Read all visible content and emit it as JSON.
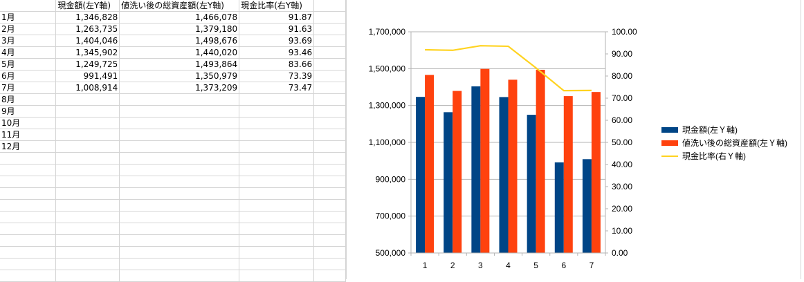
{
  "sheet": {
    "headers": [
      "",
      "現金額(左Y軸)",
      "値洗い後の総資産額(左Y軸)",
      "現金比率(右Y軸)"
    ],
    "rows": [
      [
        "1月",
        "1,346,828",
        "1,466,078",
        "91.87"
      ],
      [
        "2月",
        "1,263,735",
        "1,379,180",
        "91.63"
      ],
      [
        "3月",
        "1,404,046",
        "1,498,676",
        "93.69"
      ],
      [
        "4月",
        "1,345,902",
        "1,440,020",
        "93.46"
      ],
      [
        "5月",
        "1,249,725",
        "1,493,864",
        "83.66"
      ],
      [
        "6月",
        "991,491",
        "1,350,979",
        "73.39"
      ],
      [
        "7月",
        "1,008,914",
        "1,373,209",
        "73.47"
      ],
      [
        "8月",
        "",
        "",
        ""
      ],
      [
        "9月",
        "",
        "",
        ""
      ],
      [
        "10月",
        "",
        "",
        ""
      ],
      [
        "11月",
        "",
        "",
        ""
      ],
      [
        "12月",
        "",
        "",
        ""
      ]
    ]
  },
  "chart_data": {
    "type": "bar",
    "categories": [
      "1",
      "2",
      "3",
      "4",
      "5",
      "6",
      "7"
    ],
    "series": [
      {
        "name": "現金額(左Ｙ軸)",
        "type": "bar",
        "axis": "left",
        "color": "#004586",
        "values": [
          1346828,
          1263735,
          1404046,
          1345902,
          1249725,
          991491,
          1008914
        ]
      },
      {
        "name": "値洗い後の総資産額(左Ｙ軸)",
        "type": "bar",
        "axis": "left",
        "color": "#ff420e",
        "values": [
          1466078,
          1379180,
          1498676,
          1440020,
          1493864,
          1350979,
          1373209
        ]
      },
      {
        "name": "現金比率(右Ｙ軸)",
        "type": "line",
        "axis": "right",
        "color": "#ffd320",
        "values": [
          91.87,
          91.63,
          93.69,
          93.46,
          83.66,
          73.39,
          73.47
        ]
      }
    ],
    "ylim_left": [
      500000,
      1700000
    ],
    "ylim_right": [
      0,
      100
    ],
    "yticks_left": [
      "500,000",
      "700,000",
      "900,000",
      "1,100,000",
      "1,300,000",
      "1,500,000",
      "1,700,000"
    ],
    "yticks_right": [
      "0.00",
      "10.00",
      "20.00",
      "30.00",
      "40.00",
      "50.00",
      "60.00",
      "70.00",
      "80.00",
      "90.00",
      "100.00"
    ],
    "grid": true,
    "legend_position": "right"
  }
}
